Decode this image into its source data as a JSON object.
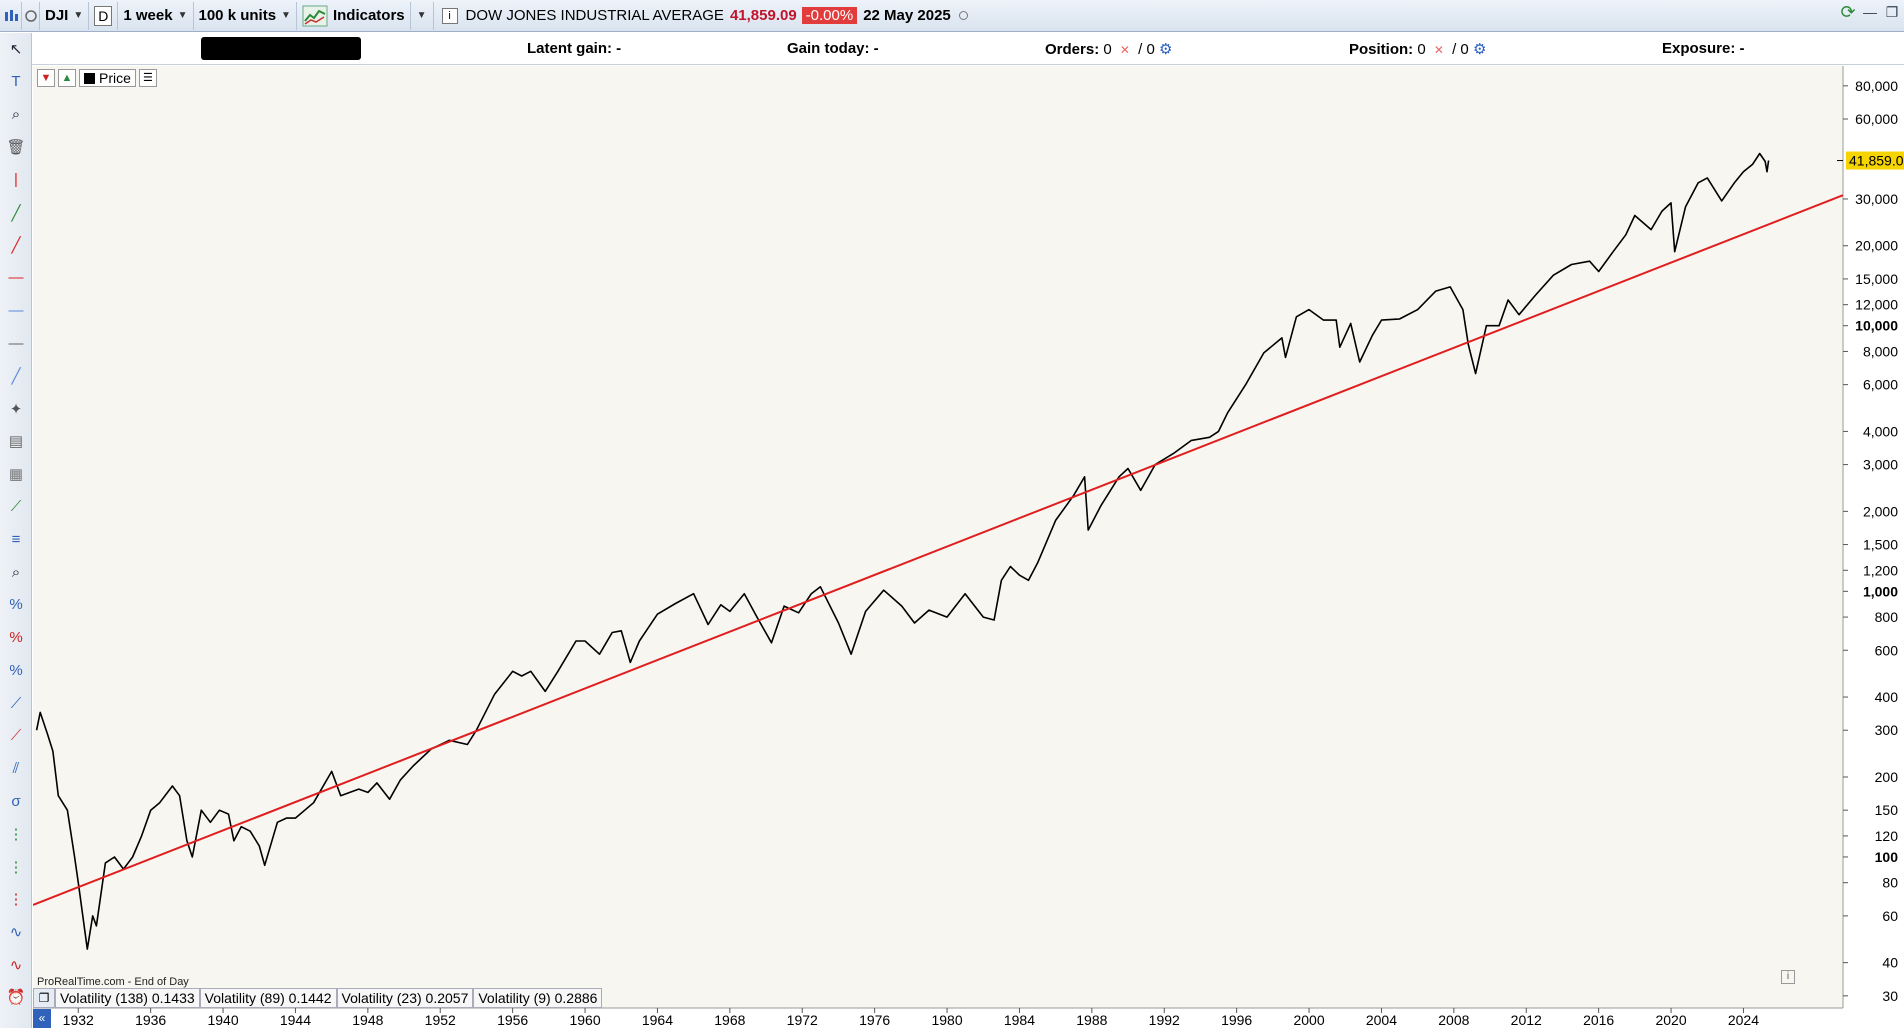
{
  "toolbar": {
    "symbol": "DJI",
    "d_label": "D",
    "timeframe": "1 week",
    "units": "100 k units",
    "indicators_label": "Indicators",
    "info_icon": "info-icon",
    "instrument_name": "DOW JONES INDUSTRIAL AVERAGE",
    "price": "41,859.09",
    "change": "-0.00%",
    "date": "22 May 2025"
  },
  "infobar": {
    "latent_gain": "Latent gain: -",
    "gain_today": "Gain today: -",
    "orders_label": "Orders:",
    "orders_a": "0",
    "orders_b": "/ 0",
    "position_label": "Position:",
    "position_a": "0",
    "position_b": "/ 0",
    "exposure": "Exposure: -"
  },
  "legend": {
    "price_label": "Price"
  },
  "credit": "ProRealTime.com - End of Day",
  "volatility": [
    "Volatility (138) 0.1433",
    "Volatility (89) 0.1442",
    "Volatility (23) 0.2057",
    "Volatility (9) 0.2886"
  ],
  "tools": [
    "cursor-icon",
    "text-tool-icon",
    "zoom-icon",
    "trash-icon",
    "vertical-line-icon",
    "line-green-icon",
    "line-red-icon",
    "horizontal-line-red-icon",
    "horizontal-line-blue-icon",
    "horizontal-line-gray-icon",
    "diagonal-line-icon",
    "gann-tool-icon",
    "ruler-icon",
    "gann-grid-icon",
    "trend-channel-icon",
    "fibonacci-icon",
    "zoom-area-icon",
    "percent-up-icon",
    "percent-mid-icon",
    "percent-down-icon",
    "regression-icon",
    "channel-icon",
    "raff-channel-icon",
    "sigma-channel-icon",
    "fibo-time-icon",
    "fibo-time2-icon",
    "fibo-time3-icon",
    "wave-icon",
    "wave2-icon",
    "alert-icon"
  ],
  "chart_data": {
    "type": "line",
    "title": "DOW JONES INDUSTRIAL AVERAGE",
    "scale": "log",
    "ylim": [
      27,
      95000
    ],
    "xlim": [
      1929.5,
      2029.5
    ],
    "last_value_label": "41,859.0",
    "y_ticks": [
      {
        "v": 80000,
        "label": "80,000"
      },
      {
        "v": 60000,
        "label": "60,000"
      },
      {
        "v": 30000,
        "label": "30,000"
      },
      {
        "v": 20000,
        "label": "20,000"
      },
      {
        "v": 15000,
        "label": "15,000"
      },
      {
        "v": 12000,
        "label": "12,000"
      },
      {
        "v": 10000,
        "label": "10,000",
        "bold": true
      },
      {
        "v": 8000,
        "label": "8,000"
      },
      {
        "v": 6000,
        "label": "6,000"
      },
      {
        "v": 4000,
        "label": "4,000"
      },
      {
        "v": 3000,
        "label": "3,000"
      },
      {
        "v": 2000,
        "label": "2,000"
      },
      {
        "v": 1500,
        "label": "1,500"
      },
      {
        "v": 1200,
        "label": "1,200"
      },
      {
        "v": 1000,
        "label": "1,000",
        "bold": true
      },
      {
        "v": 800,
        "label": "800"
      },
      {
        "v": 600,
        "label": "600"
      },
      {
        "v": 400,
        "label": "400"
      },
      {
        "v": 300,
        "label": "300"
      },
      {
        "v": 200,
        "label": "200"
      },
      {
        "v": 150,
        "label": "150"
      },
      {
        "v": 120,
        "label": "120"
      },
      {
        "v": 100,
        "label": "100",
        "bold": true
      },
      {
        "v": 80,
        "label": "80"
      },
      {
        "v": 60,
        "label": "60"
      },
      {
        "v": 40,
        "label": "40"
      },
      {
        "v": 30,
        "label": "30"
      }
    ],
    "x_ticks": [
      "1932",
      "1936",
      "1940",
      "1944",
      "1948",
      "1952",
      "1956",
      "1960",
      "1964",
      "1968",
      "1972",
      "1976",
      "1980",
      "1984",
      "1988",
      "1992",
      "1996",
      "2000",
      "2004",
      "2008",
      "2012",
      "2016",
      "2020",
      "2024"
    ],
    "series": [
      {
        "color": "#000000",
        "points": [
          [
            1929.7,
            300
          ],
          [
            1929.9,
            350
          ],
          [
            1930.3,
            290
          ],
          [
            1930.6,
            250
          ],
          [
            1930.9,
            170
          ],
          [
            1931.4,
            150
          ],
          [
            1931.8,
            100
          ],
          [
            1932.0,
            80
          ],
          [
            1932.5,
            45
          ],
          [
            1932.8,
            60
          ],
          [
            1933.0,
            55
          ],
          [
            1933.5,
            95
          ],
          [
            1934.0,
            100
          ],
          [
            1934.5,
            90
          ],
          [
            1935.0,
            100
          ],
          [
            1935.5,
            120
          ],
          [
            1936.0,
            150
          ],
          [
            1936.5,
            160
          ],
          [
            1937.2,
            185
          ],
          [
            1937.6,
            170
          ],
          [
            1938.0,
            115
          ],
          [
            1938.3,
            100
          ],
          [
            1938.8,
            150
          ],
          [
            1939.3,
            135
          ],
          [
            1939.8,
            150
          ],
          [
            1940.3,
            145
          ],
          [
            1940.6,
            115
          ],
          [
            1941.0,
            130
          ],
          [
            1941.5,
            125
          ],
          [
            1942.0,
            110
          ],
          [
            1942.3,
            93
          ],
          [
            1943.0,
            135
          ],
          [
            1943.5,
            140
          ],
          [
            1944.0,
            140
          ],
          [
            1945.0,
            160
          ],
          [
            1946.0,
            210
          ],
          [
            1946.5,
            170
          ],
          [
            1947.0,
            175
          ],
          [
            1947.5,
            180
          ],
          [
            1948.0,
            175
          ],
          [
            1948.5,
            190
          ],
          [
            1949.2,
            165
          ],
          [
            1949.8,
            195
          ],
          [
            1950.5,
            220
          ],
          [
            1951.5,
            255
          ],
          [
            1952.5,
            275
          ],
          [
            1953.5,
            265
          ],
          [
            1954.0,
            300
          ],
          [
            1955.0,
            410
          ],
          [
            1956.0,
            500
          ],
          [
            1956.5,
            480
          ],
          [
            1957.0,
            500
          ],
          [
            1957.8,
            420
          ],
          [
            1958.5,
            500
          ],
          [
            1959.5,
            650
          ],
          [
            1960.0,
            650
          ],
          [
            1960.8,
            580
          ],
          [
            1961.5,
            700
          ],
          [
            1962.0,
            710
          ],
          [
            1962.5,
            540
          ],
          [
            1963.0,
            650
          ],
          [
            1964.0,
            820
          ],
          [
            1965.0,
            900
          ],
          [
            1966.0,
            980
          ],
          [
            1966.8,
            750
          ],
          [
            1967.5,
            890
          ],
          [
            1968.0,
            840
          ],
          [
            1968.8,
            980
          ],
          [
            1969.5,
            800
          ],
          [
            1970.3,
            640
          ],
          [
            1971.0,
            880
          ],
          [
            1971.8,
            830
          ],
          [
            1972.5,
            980
          ],
          [
            1973.0,
            1040
          ],
          [
            1974.0,
            760
          ],
          [
            1974.7,
            580
          ],
          [
            1975.5,
            840
          ],
          [
            1976.5,
            1010
          ],
          [
            1977.5,
            880
          ],
          [
            1978.2,
            760
          ],
          [
            1979.0,
            850
          ],
          [
            1980.0,
            800
          ],
          [
            1981.0,
            980
          ],
          [
            1982.0,
            800
          ],
          [
            1982.6,
            780
          ],
          [
            1983.0,
            1100
          ],
          [
            1983.5,
            1240
          ],
          [
            1984.0,
            1150
          ],
          [
            1984.5,
            1100
          ],
          [
            1985.0,
            1280
          ],
          [
            1986.0,
            1850
          ],
          [
            1987.0,
            2300
          ],
          [
            1987.6,
            2700
          ],
          [
            1987.8,
            1700
          ],
          [
            1988.5,
            2100
          ],
          [
            1989.5,
            2700
          ],
          [
            1990.0,
            2900
          ],
          [
            1990.7,
            2400
          ],
          [
            1991.5,
            3000
          ],
          [
            1992.5,
            3300
          ],
          [
            1993.5,
            3700
          ],
          [
            1994.5,
            3800
          ],
          [
            1995.0,
            4000
          ],
          [
            1995.5,
            4700
          ],
          [
            1996.5,
            6000
          ],
          [
            1997.5,
            7900
          ],
          [
            1998.5,
            9000
          ],
          [
            1998.7,
            7600
          ],
          [
            1999.3,
            10800
          ],
          [
            2000.0,
            11500
          ],
          [
            2000.8,
            10500
          ],
          [
            2001.5,
            10500
          ],
          [
            2001.7,
            8300
          ],
          [
            2002.3,
            10200
          ],
          [
            2002.8,
            7300
          ],
          [
            2003.5,
            9200
          ],
          [
            2004.0,
            10500
          ],
          [
            2005.0,
            10600
          ],
          [
            2006.0,
            11500
          ],
          [
            2007.0,
            13500
          ],
          [
            2007.8,
            14000
          ],
          [
            2008.5,
            11500
          ],
          [
            2008.8,
            8500
          ],
          [
            2009.2,
            6600
          ],
          [
            2009.8,
            10000
          ],
          [
            2010.5,
            10000
          ],
          [
            2011.0,
            12500
          ],
          [
            2011.6,
            11000
          ],
          [
            2012.5,
            13000
          ],
          [
            2013.5,
            15500
          ],
          [
            2014.5,
            17000
          ],
          [
            2015.5,
            17500
          ],
          [
            2016.0,
            16000
          ],
          [
            2016.8,
            19000
          ],
          [
            2017.5,
            22000
          ],
          [
            2018.0,
            26000
          ],
          [
            2018.9,
            23000
          ],
          [
            2019.5,
            27000
          ],
          [
            2020.0,
            29000
          ],
          [
            2020.2,
            19000
          ],
          [
            2020.8,
            28000
          ],
          [
            2021.5,
            34500
          ],
          [
            2022.0,
            36000
          ],
          [
            2022.8,
            29500
          ],
          [
            2023.5,
            34500
          ],
          [
            2024.0,
            38000
          ],
          [
            2024.5,
            40500
          ],
          [
            2024.9,
            44500
          ],
          [
            2025.2,
            41500
          ],
          [
            2025.3,
            38000
          ],
          [
            2025.39,
            41859
          ]
        ]
      },
      {
        "color": "#e01e1e",
        "points": [
          [
            1929.5,
            66
          ],
          [
            2029.5,
            31000
          ]
        ]
      }
    ]
  }
}
